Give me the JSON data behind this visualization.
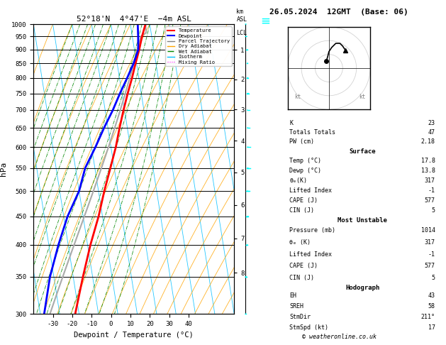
{
  "title_left": "52°18'N  4°47'E  −4m ASL",
  "title_right": "26.05.2024  12GMT  (Base: 06)",
  "xlabel": "Dewpoint / Temperature (°C)",
  "ylabel_left": "hPa",
  "pressure_ticks": [
    300,
    350,
    400,
    450,
    500,
    550,
    600,
    650,
    700,
    750,
    800,
    850,
    900,
    950,
    1000
  ],
  "temp_xticks": [
    -30,
    -20,
    -10,
    0,
    10,
    20,
    30,
    40
  ],
  "bg_color": "#ffffff",
  "sounding_colors": {
    "temperature": "#ff0000",
    "dewpoint": "#0000ff",
    "parcel": "#aaaaaa"
  },
  "isotherm_color": "#00bfff",
  "dry_adiabat_color": "#ffa500",
  "wet_adiabat_color": "#008800",
  "mixing_ratio_color": "#ff00ff",
  "mixing_ratio_values": [
    1,
    2,
    3,
    4,
    6,
    8,
    10,
    15,
    20,
    25
  ],
  "km_ticks": [
    1,
    2,
    3,
    4,
    5,
    6,
    7,
    8
  ],
  "lcl_label": "LCL",
  "T_data": {
    "1000": 17.8,
    "950": 15.0,
    "900": 12.5,
    "850": 9.5,
    "800": 6.5,
    "750": 3.0,
    "700": -0.5,
    "650": -4.0,
    "600": -7.5,
    "550": -12.0,
    "500": -17.0,
    "450": -22.0,
    "400": -28.5,
    "350": -35.0,
    "300": -42.0
  },
  "Td_data": {
    "1000": 13.8,
    "950": 13.0,
    "900": 12.0,
    "850": 8.5,
    "800": 4.0,
    "750": -1.0,
    "700": -6.0,
    "650": -12.0,
    "600": -18.0,
    "550": -25.0,
    "500": -30.0,
    "450": -38.0,
    "400": -45.0,
    "350": -52.0,
    "300": -58.0
  },
  "P_lcl": 965,
  "T_lcl": 15.2,
  "stats": {
    "K": 23,
    "Totals_Totals": 47,
    "PW_cm": 2.18,
    "Surface": {
      "Temp_C": 17.8,
      "Dewp_C": 13.8,
      "theta_e_K": 317,
      "Lifted_Index": -1,
      "CAPE_J": 577,
      "CIN_J": 5
    },
    "Most_Unstable": {
      "Pressure_mb": 1014,
      "theta_e_K": 317,
      "Lifted_Index": -1,
      "CAPE_J": 577,
      "CIN_J": 5
    },
    "Hodograph": {
      "EH": 43,
      "SREH": 58,
      "StmDir": "211°",
      "StmSpd_kt": 17
    }
  },
  "copyright": "© weatheronline.co.uk",
  "hodo_u": [
    -2,
    -1,
    0,
    2,
    5,
    8,
    10,
    12
  ],
  "hodo_v": [
    5,
    8,
    12,
    15,
    18,
    18,
    16,
    13
  ],
  "wind_pressures": [
    1000,
    950,
    900,
    850,
    800,
    750,
    700,
    650,
    600,
    550,
    500,
    450,
    400,
    350,
    300
  ],
  "wind_dirs": [
    190,
    200,
    205,
    210,
    215,
    225,
    235,
    250,
    265,
    280,
    300,
    320,
    335,
    345,
    355
  ],
  "wind_speeds": [
    5,
    8,
    10,
    12,
    12,
    15,
    15,
    18,
    18,
    20,
    20,
    22,
    22,
    25,
    28
  ]
}
